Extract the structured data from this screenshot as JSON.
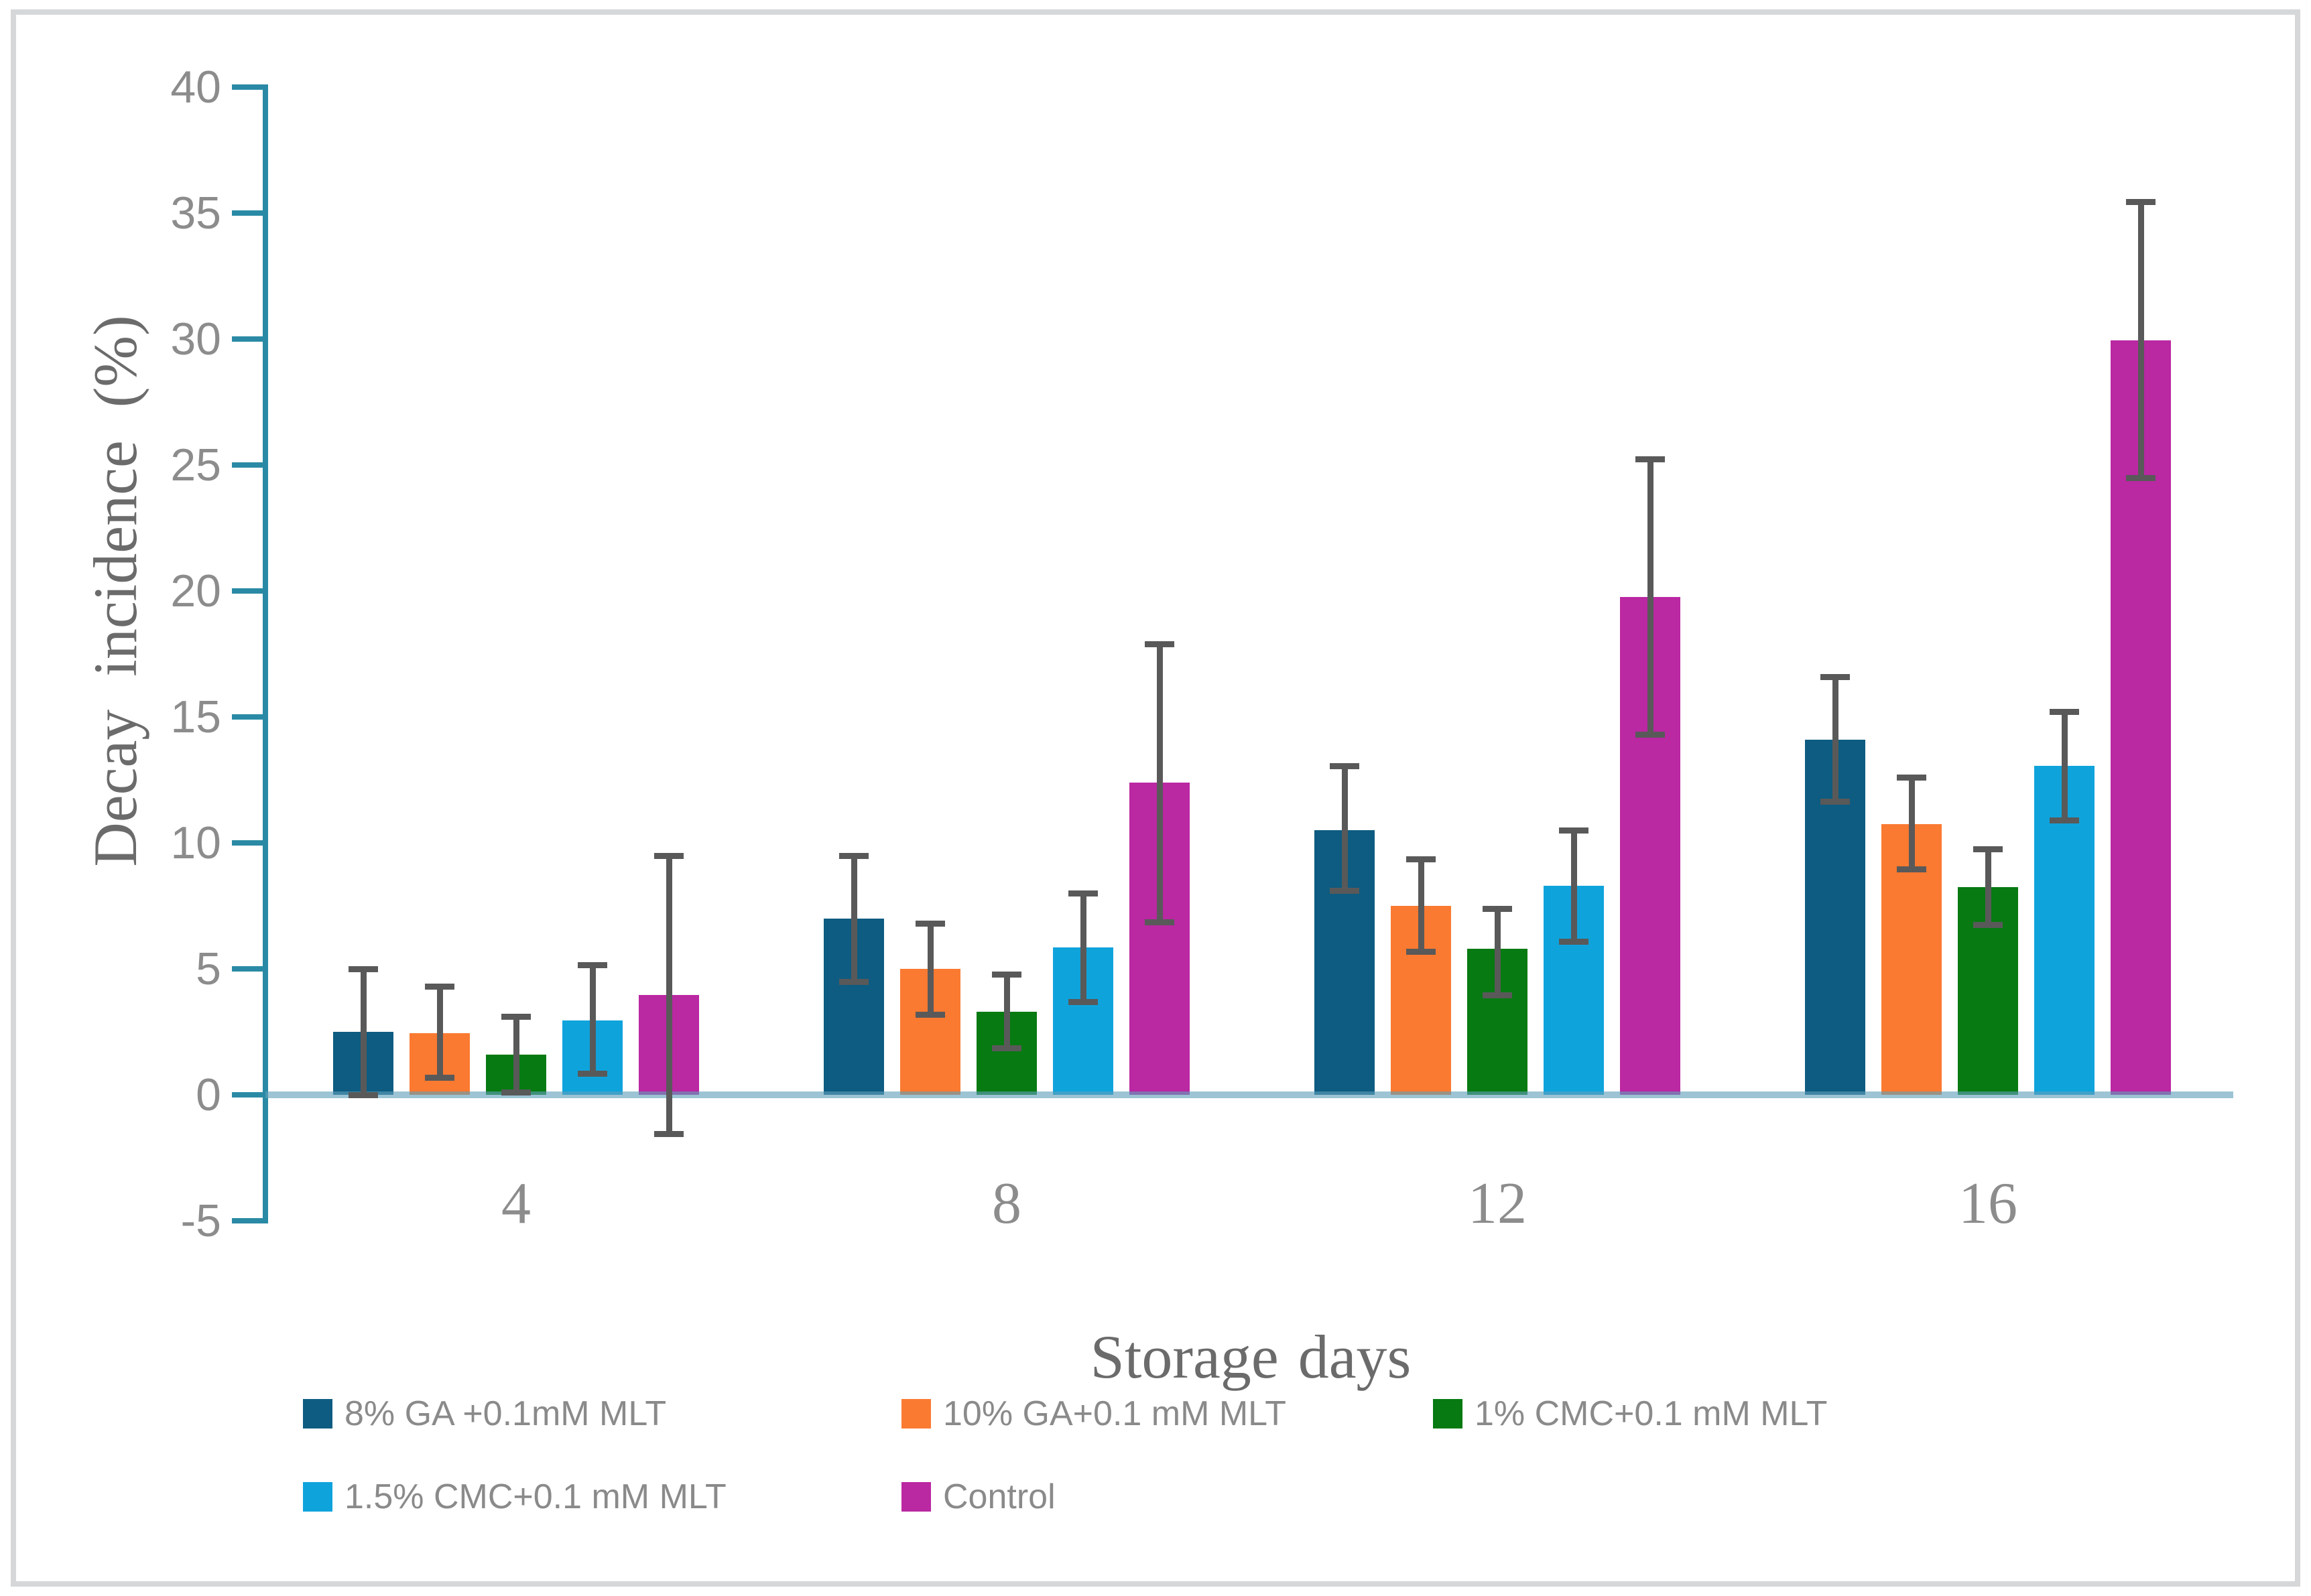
{
  "figure": {
    "background": "#ffffff",
    "border_color": "#d6d7d8"
  },
  "chart_data": {
    "type": "bar",
    "title": "",
    "xlabel": "Storage days",
    "ylabel": "Decay  incidence (%)",
    "categories": [
      "4",
      "8",
      "12",
      "16"
    ],
    "y_axis": {
      "min": -5,
      "max": 40,
      "step": 5,
      "tick_labels": [
        "40",
        "35",
        "30",
        "25",
        "20",
        "15",
        "10",
        "5",
        "0",
        "-5"
      ]
    },
    "grid": "off",
    "legend_position": "bottom",
    "error_bars": true,
    "series": [
      {
        "name": "8% GA +0.1mM MLT",
        "color": "#0e5c81",
        "values": [
          2.5,
          7.0,
          10.5,
          14.1
        ],
        "err_up": [
          2.5,
          2.5,
          2.55,
          2.5
        ],
        "err_down": [
          2.5,
          2.5,
          2.4,
          2.45
        ]
      },
      {
        "name": "10% GA+0.1 mM MLT",
        "color": "#fa7a31",
        "values": [
          2.45,
          5.0,
          7.5,
          10.75
        ],
        "err_up": [
          1.85,
          1.8,
          1.85,
          1.85
        ],
        "err_down": [
          1.75,
          1.8,
          1.8,
          1.8
        ]
      },
      {
        "name": "1% CMC+0.1 mM MLT",
        "color": "#077a12",
        "values": [
          1.6,
          3.3,
          5.8,
          8.25
        ],
        "err_up": [
          1.5,
          1.5,
          1.6,
          1.5
        ],
        "err_down": [
          1.5,
          1.45,
          1.85,
          1.5
        ]
      },
      {
        "name": "1.5% CMC+0.1 mM MLT",
        "color": "#0fa3dc",
        "values": [
          2.95,
          5.85,
          8.3,
          13.05
        ],
        "err_up": [
          2.2,
          2.15,
          2.2,
          2.15
        ],
        "err_down": [
          2.1,
          2.15,
          2.2,
          2.15
        ]
      },
      {
        "name": "Control",
        "color": "#ba28a2",
        "values": [
          3.95,
          12.4,
          19.75,
          29.95
        ],
        "err_up": [
          5.55,
          5.5,
          5.5,
          5.5
        ],
        "err_down": [
          5.5,
          5.55,
          5.45,
          5.45
        ]
      }
    ],
    "axis_color": "#2a8aa5",
    "baseline_color": "#8fbdd2",
    "error_bar_color": "#595959",
    "tick_label_color": "#8c8c8c",
    "title_color": "#6b6b6b",
    "legend_text_color": "#8a8a8a"
  }
}
